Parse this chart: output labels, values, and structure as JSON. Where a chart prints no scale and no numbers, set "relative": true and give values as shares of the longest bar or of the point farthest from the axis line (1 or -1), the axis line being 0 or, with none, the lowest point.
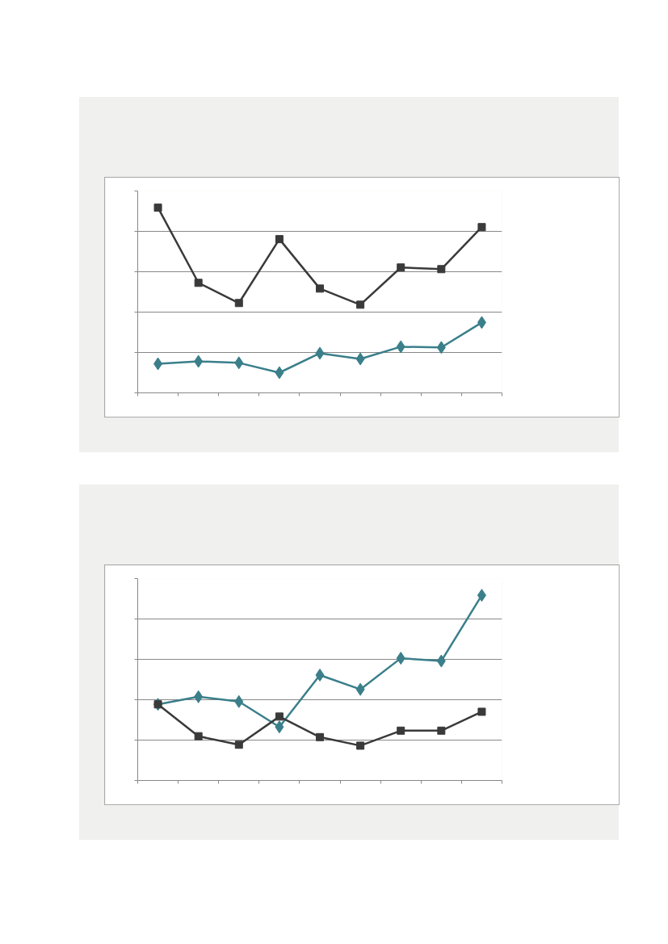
{
  "chart_data": [
    {
      "type": "line",
      "relative": true,
      "categories": [
        null,
        null,
        null,
        null,
        null,
        null,
        null,
        null,
        null
      ],
      "grid": "y",
      "tick_labels": false,
      "series": [
        {
          "color": "#3a7f8a",
          "marker": "diamond",
          "values": [
            0.157,
            0.17,
            0.162,
            0.109,
            0.214,
            0.183,
            0.249,
            0.245,
            0.38
          ]
        },
        {
          "color": "#3a3a3a",
          "marker": "square",
          "values": [
            1,
            0.594,
            0.485,
            0.83,
            0.563,
            0.476,
            0.677,
            0.668,
            0.895
          ]
        }
      ]
    },
    {
      "type": "line",
      "relative": true,
      "categories": [
        null,
        null,
        null,
        null,
        null,
        null,
        null,
        null,
        null
      ],
      "grid": "y",
      "tick_labels": false,
      "series": [
        {
          "color": "#3a7f8a",
          "marker": "diamond",
          "values": [
            0.411,
            0.452,
            0.426,
            0.289,
            0.569,
            0.492,
            0.66,
            0.645,
            1
          ]
        },
        {
          "color": "#3a3a3a",
          "marker": "square",
          "values": [
            0.411,
            0.239,
            0.193,
            0.345,
            0.234,
            0.188,
            0.269,
            0.269,
            0.371
          ]
        }
      ]
    }
  ]
}
